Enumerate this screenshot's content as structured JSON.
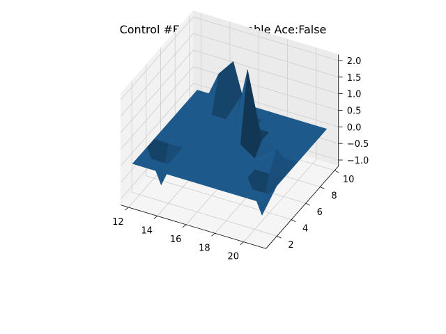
{
  "chart_data": {
    "type": "surface3d",
    "title": "Control #EP:10000, Usable Ace:False",
    "xlabel": "",
    "ylabel": "",
    "zlabel": "",
    "x_ticks": [
      12,
      14,
      16,
      18,
      20
    ],
    "y_ticks": [
      2,
      4,
      6,
      8,
      10
    ],
    "z_ticks": [
      "−1.0",
      "−0.5",
      "0.0",
      "0.5",
      "1.0",
      "1.5",
      "2.0"
    ],
    "xlim": [
      12,
      21
    ],
    "ylim": [
      1,
      10
    ],
    "zlim": [
      -1,
      2
    ],
    "surface_color": "#1f5f94",
    "x": [
      12,
      13,
      14,
      15,
      16,
      17,
      18,
      19,
      20,
      21
    ],
    "y": [
      1,
      2,
      3,
      4,
      5,
      6,
      7,
      8,
      9,
      10
    ],
    "z": [
      [
        0,
        0,
        0,
        0,
        0,
        0,
        0,
        0,
        0,
        0
      ],
      [
        0,
        0,
        0,
        0,
        0,
        0,
        0,
        0,
        0,
        0
      ],
      [
        0,
        0,
        0,
        0,
        0,
        0,
        0,
        0,
        0,
        0
      ],
      [
        0,
        0,
        0,
        0,
        0,
        0,
        0,
        0,
        0,
        0
      ],
      [
        0,
        0,
        0,
        0,
        0,
        0,
        0,
        0,
        0,
        0
      ],
      [
        0,
        0,
        0,
        0,
        0,
        0,
        0,
        0,
        0,
        0
      ],
      [
        0,
        0,
        0,
        0,
        0,
        0,
        0,
        0,
        0,
        0
      ],
      [
        0,
        0,
        0,
        0,
        0,
        0,
        0,
        0,
        0,
        0
      ],
      [
        0,
        0,
        0,
        0,
        0,
        0,
        0,
        0,
        0,
        0
      ],
      [
        0,
        0,
        0,
        0,
        0,
        0,
        0,
        0,
        0,
        0
      ]
    ],
    "spikes": [
      {
        "x": 13,
        "y": 3,
        "z": -1
      },
      {
        "x": 14,
        "y": 9,
        "z": 1
      },
      {
        "x": 15,
        "y": 9,
        "z": 1.5
      },
      {
        "x": 16,
        "y": 8,
        "z": 0.8
      },
      {
        "x": 17,
        "y": 7,
        "z": 2
      },
      {
        "x": 18,
        "y": 6,
        "z": -0.3
      },
      {
        "x": 20,
        "y": 3,
        "z": -1
      },
      {
        "x": 20,
        "y": 5,
        "z": 0.5
      }
    ]
  }
}
